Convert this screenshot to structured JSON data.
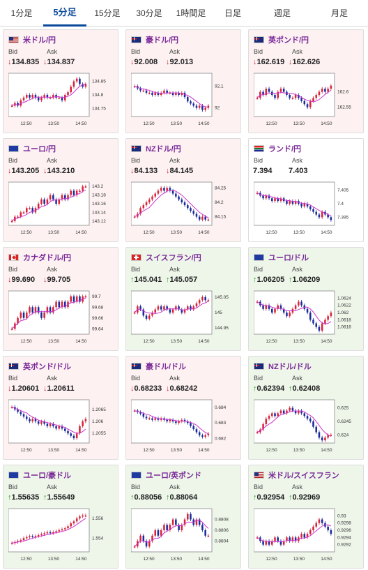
{
  "tabs": [
    {
      "label": "1分足",
      "active": false
    },
    {
      "label": "5分足",
      "active": true
    },
    {
      "label": "15分足",
      "active": false
    },
    {
      "label": "30分足",
      "active": false
    },
    {
      "label": "1時間足",
      "active": false
    },
    {
      "label": "日足",
      "active": false
    },
    {
      "label": "週足",
      "active": false
    },
    {
      "label": "月足",
      "active": false
    }
  ],
  "labels": {
    "bid": "Bid",
    "ask": "Ask"
  },
  "colors": {
    "down_bg": "#fdf1f2",
    "up_bg": "#eef6ea",
    "up_candle": "#d6243a",
    "down_candle": "#1a2b9a",
    "ma": "#cc33cc",
    "down_arrow": "#d6243a",
    "up_arrow": "#2a9a2a",
    "pair_text": "#7a2a98"
  },
  "cards": [
    {
      "pair": "米ドル/円",
      "flag": "us-flag",
      "trend": "down",
      "bid": "134.835",
      "ask": "134.837",
      "x_ticks": [
        "12:50",
        "13:50",
        "14:50"
      ],
      "y_ticks": [
        "134.85",
        "134.8",
        "134.75"
      ],
      "y_range": [
        134.72,
        134.88
      ],
      "chart_data": {
        "type": "candlestick",
        "close": [
          134.76,
          134.77,
          134.76,
          134.78,
          134.79,
          134.8,
          134.79,
          134.8,
          134.79,
          134.78,
          134.79,
          134.8,
          134.79,
          134.79,
          134.8,
          134.79,
          134.79,
          134.78,
          134.8,
          134.81,
          134.83,
          134.85,
          134.86,
          134.84,
          134.83,
          134.84
        ]
      }
    },
    {
      "pair": "豪ドル/円",
      "flag": "au-flag",
      "trend": "down",
      "bid": "92.008",
      "ask": "92.013",
      "x_ticks": [
        "12:50",
        "13:50",
        "14:50"
      ],
      "y_ticks": [
        "92.1",
        "92"
      ],
      "y_range": [
        91.96,
        92.16
      ],
      "chart_data": {
        "type": "candlestick",
        "close": [
          92.1,
          92.09,
          92.08,
          92.08,
          92.07,
          92.07,
          92.06,
          92.07,
          92.06,
          92.07,
          92.08,
          92.07,
          92.07,
          92.06,
          92.07,
          92.06,
          92.07,
          92.05,
          92.03,
          92.02,
          92.01,
          92.0,
          92.01,
          91.99,
          92.0,
          92.01
        ]
      }
    },
    {
      "pair": "英ポンド/円",
      "flag": "uk-flag",
      "trend": "down",
      "bid": "162.619",
      "ask": "162.626",
      "x_ticks": [
        "12:50",
        "13:50",
        "14:50"
      ],
      "y_ticks": [
        "162.6",
        "162.55"
      ],
      "y_range": [
        162.52,
        162.66
      ],
      "chart_data": {
        "type": "candlestick",
        "close": [
          162.58,
          162.6,
          162.59,
          162.61,
          162.6,
          162.59,
          162.58,
          162.6,
          162.61,
          162.6,
          162.59,
          162.58,
          162.58,
          162.59,
          162.58,
          162.57,
          162.56,
          162.55,
          162.57,
          162.58,
          162.59,
          162.6,
          162.61,
          162.6,
          162.61,
          162.62
        ]
      }
    },
    {
      "pair": "ユーロ/円",
      "flag": "eu-flag",
      "trend": "down",
      "bid": "143.205",
      "ask": "143.210",
      "x_ticks": [
        "12:50",
        "13:50",
        "14:50"
      ],
      "y_ticks": [
        "143.2",
        "143.18",
        "143.16",
        "143.14",
        "143.12"
      ],
      "y_range": [
        143.11,
        143.21
      ],
      "chart_data": {
        "type": "candlestick",
        "close": [
          143.12,
          143.13,
          143.13,
          143.14,
          143.14,
          143.15,
          143.15,
          143.14,
          143.15,
          143.16,
          143.17,
          143.16,
          143.17,
          143.18,
          143.17,
          143.16,
          143.17,
          143.18,
          143.17,
          143.18,
          143.19,
          143.18,
          143.19,
          143.19,
          143.2,
          143.2
        ]
      }
    },
    {
      "pair": "NZドル/円",
      "flag": "nz-flag",
      "trend": "down",
      "bid": "84.133",
      "ask": "84.145",
      "x_ticks": [
        "12:50",
        "13:50",
        "14:50"
      ],
      "y_ticks": [
        "84.25",
        "84.2",
        "84.15"
      ],
      "y_range": [
        84.12,
        84.27
      ],
      "chart_data": {
        "type": "candlestick",
        "close": [
          84.15,
          84.16,
          84.18,
          84.19,
          84.2,
          84.21,
          84.22,
          84.23,
          84.24,
          84.25,
          84.24,
          84.25,
          84.24,
          84.23,
          84.22,
          84.21,
          84.2,
          84.19,
          84.18,
          84.17,
          84.16,
          84.15,
          84.14,
          84.15,
          84.14,
          84.14
        ]
      }
    },
    {
      "pair": "ランド/円",
      "flag": "za-flag",
      "trend": "flat",
      "bid": "7.394",
      "ask": "7.403",
      "x_ticks": [
        "12:50",
        "13:50",
        "14:50"
      ],
      "y_ticks": [
        "7.405",
        "7.4",
        "7.395"
      ],
      "y_range": [
        7.392,
        7.408
      ],
      "chart_data": {
        "type": "candlestick",
        "close": [
          7.404,
          7.403,
          7.402,
          7.403,
          7.402,
          7.401,
          7.402,
          7.401,
          7.402,
          7.401,
          7.4,
          7.401,
          7.4,
          7.401,
          7.4,
          7.399,
          7.4,
          7.399,
          7.398,
          7.397,
          7.396,
          7.395,
          7.397,
          7.396,
          7.395,
          7.394
        ]
      }
    },
    {
      "pair": "カナダドル/円",
      "flag": "ca-flag",
      "trend": "down",
      "bid": "99.690",
      "ask": "99.705",
      "x_ticks": [
        "12:50",
        "13:50",
        "14:50"
      ],
      "y_ticks": [
        "99.7",
        "99.68",
        "99.66",
        "99.64"
      ],
      "y_range": [
        99.63,
        99.71
      ],
      "chart_data": {
        "type": "candlestick",
        "close": [
          99.64,
          99.65,
          99.66,
          99.67,
          99.66,
          99.67,
          99.68,
          99.67,
          99.68,
          99.67,
          99.66,
          99.67,
          99.68,
          99.67,
          99.68,
          99.69,
          99.68,
          99.69,
          99.68,
          99.69,
          99.7,
          99.69,
          99.7,
          99.69,
          99.7,
          99.7
        ]
      }
    },
    {
      "pair": "スイスフラン/円",
      "flag": "ch-flag",
      "trend": "up",
      "bid": "145.041",
      "ask": "145.057",
      "x_ticks": [
        "12:50",
        "13:50",
        "14:50"
      ],
      "y_ticks": [
        "145.05",
        "145",
        "144.95"
      ],
      "y_range": [
        144.93,
        145.07
      ],
      "chart_data": {
        "type": "candlestick",
        "close": [
          145.0,
          145.02,
          145.01,
          144.99,
          144.98,
          144.99,
          145.0,
          145.01,
          145.02,
          145.01,
          145.02,
          145.01,
          145.0,
          145.01,
          145.02,
          145.01,
          145.0,
          145.01,
          145.02,
          145.01,
          145.02,
          145.03,
          145.04,
          145.05,
          145.04,
          145.04
        ]
      }
    },
    {
      "pair": "ユーロ/ドル",
      "flag": "eu-us-flag",
      "trend": "up",
      "bid": "1.06205",
      "ask": "1.06209",
      "x_ticks": [
        "12:50",
        "13:50",
        "14:50"
      ],
      "y_ticks": [
        "1.0624",
        "1.0622",
        "1.062",
        "1.0618",
        "1.0616"
      ],
      "y_range": [
        1.0614,
        1.0626
      ],
      "chart_data": {
        "type": "candlestick",
        "close": [
          1.0623,
          1.0622,
          1.0621,
          1.0622,
          1.0621,
          1.062,
          1.0621,
          1.0622,
          1.0621,
          1.062,
          1.0619,
          1.062,
          1.0621,
          1.0622,
          1.0623,
          1.0622,
          1.0621,
          1.062,
          1.0618,
          1.0617,
          1.0616,
          1.0615,
          1.0617,
          1.0618,
          1.0619,
          1.062
        ]
      }
    },
    {
      "pair": "英ポンド/ドル",
      "flag": "uk-us-flag",
      "trend": "down",
      "bid": "1.20601",
      "ask": "1.20611",
      "x_ticks": [
        "12:50",
        "13:50",
        "14:50"
      ],
      "y_ticks": [
        "1.2065",
        "1.206",
        "1.2055"
      ],
      "y_range": [
        1.2051,
        1.2069
      ],
      "chart_data": {
        "type": "candlestick",
        "close": [
          1.2066,
          1.2065,
          1.2064,
          1.2063,
          1.2062,
          1.2061,
          1.206,
          1.2061,
          1.206,
          1.2059,
          1.206,
          1.2059,
          1.2058,
          1.2059,
          1.2058,
          1.2057,
          1.2058,
          1.2057,
          1.2056,
          1.2055,
          1.2054,
          1.2053,
          1.2055,
          1.2058,
          1.206,
          1.2061
        ]
      }
    },
    {
      "pair": "豪ドル/ドル",
      "flag": "au-us-flag",
      "trend": "down",
      "bid": "0.68233",
      "ask": "0.68242",
      "x_ticks": [
        "12:50",
        "13:50",
        "14:50"
      ],
      "y_ticks": [
        "0.684",
        "0.683",
        "0.682"
      ],
      "y_range": [
        0.6817,
        0.6845
      ],
      "chart_data": {
        "type": "candlestick",
        "close": [
          0.6838,
          0.6837,
          0.6836,
          0.6834,
          0.6833,
          0.6833,
          0.6832,
          0.6833,
          0.6832,
          0.6833,
          0.6832,
          0.6831,
          0.6832,
          0.6831,
          0.683,
          0.6831,
          0.6832,
          0.6831,
          0.683,
          0.6828,
          0.6826,
          0.6824,
          0.6822,
          0.6821,
          0.6822,
          0.6823
        ]
      }
    },
    {
      "pair": "NZドル/ドル",
      "flag": "nz-us-flag",
      "trend": "up",
      "bid": "0.62394",
      "ask": "0.62408",
      "x_ticks": [
        "12:50",
        "13:50",
        "14:50"
      ],
      "y_ticks": [
        "0.625",
        "0.6245",
        "0.624"
      ],
      "y_range": [
        0.6237,
        0.6253
      ],
      "chart_data": {
        "type": "candlestick",
        "close": [
          0.6241,
          0.6242,
          0.6244,
          0.6246,
          0.6247,
          0.6248,
          0.6247,
          0.6248,
          0.6249,
          0.6248,
          0.6249,
          0.625,
          0.6249,
          0.6248,
          0.6249,
          0.6248,
          0.6247,
          0.6246,
          0.6245,
          0.6243,
          0.6241,
          0.6239,
          0.6238,
          0.6239,
          0.624,
          0.624
        ]
      }
    },
    {
      "pair": "ユーロ/豪ドル",
      "flag": "eu-au-flag",
      "trend": "up",
      "bid": "1.55635",
      "ask": "1.55649",
      "x_ticks": [
        "12:50",
        "13:50",
        "14:50"
      ],
      "y_ticks": [
        "1.556",
        "1.554"
      ],
      "y_range": [
        1.5526,
        1.557
      ],
      "chart_data": {
        "type": "candlestick",
        "close": [
          1.5535,
          1.5536,
          1.5537,
          1.5538,
          1.554,
          1.5541,
          1.5542,
          1.5541,
          1.5542,
          1.5543,
          1.5544,
          1.5545,
          1.5546,
          1.5545,
          1.5546,
          1.5547,
          1.5548,
          1.5549,
          1.555,
          1.5552,
          1.5555,
          1.5557,
          1.556,
          1.5562,
          1.5563,
          1.5563
        ]
      }
    },
    {
      "pair": "ユーロ/英ポンド",
      "flag": "eu-uk-flag",
      "trend": "up",
      "bid": "0.88056",
      "ask": "0.88064",
      "x_ticks": [
        "12:50",
        "13:50",
        "14:50"
      ],
      "y_ticks": [
        "0.8808",
        "0.8806",
        "0.8804"
      ],
      "y_range": [
        0.8802,
        0.881
      ],
      "chart_data": {
        "type": "candlestick",
        "close": [
          0.8803,
          0.8804,
          0.8805,
          0.8804,
          0.8803,
          0.8804,
          0.8805,
          0.8806,
          0.8805,
          0.8806,
          0.8807,
          0.8806,
          0.8807,
          0.8808,
          0.8807,
          0.8806,
          0.8807,
          0.8808,
          0.8809,
          0.8808,
          0.8807,
          0.8808,
          0.8807,
          0.8806,
          0.8805,
          0.8805
        ]
      }
    },
    {
      "pair": "米ドル/スイスフラン",
      "flag": "us-ch-flag",
      "trend": "up",
      "bid": "0.92954",
      "ask": "0.92969",
      "x_ticks": [
        "12:50",
        "13:50",
        "14:50"
      ],
      "y_ticks": [
        "0.93",
        "0.9298",
        "0.9296",
        "0.9294",
        "0.9292"
      ],
      "y_range": [
        0.929,
        0.9302
      ],
      "chart_data": {
        "type": "candlestick",
        "close": [
          0.9294,
          0.9293,
          0.9292,
          0.9293,
          0.9292,
          0.9293,
          0.9294,
          0.9293,
          0.9292,
          0.9293,
          0.9294,
          0.9293,
          0.9294,
          0.9293,
          0.9294,
          0.9295,
          0.9294,
          0.9295,
          0.9296,
          0.9297,
          0.9298,
          0.9299,
          0.9298,
          0.9297,
          0.9296,
          0.9295
        ]
      }
    }
  ]
}
